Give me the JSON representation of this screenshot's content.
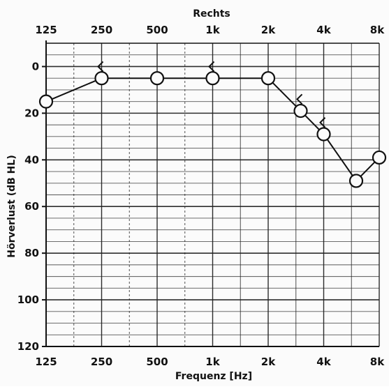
{
  "chart_data": {
    "type": "line",
    "title": "Rechts",
    "xlabel": "Frequenz [Hz]",
    "ylabel": "Hörverlust (dB HL)",
    "x_tick_labels": [
      "125",
      "250",
      "500",
      "1k",
      "2k",
      "4k",
      "8k"
    ],
    "x_tick_values_hz": [
      125,
      250,
      500,
      1000,
      2000,
      4000,
      8000
    ],
    "y_ticks": [
      0,
      20,
      40,
      60,
      80,
      100,
      120
    ],
    "y_tick_labels": [
      "0",
      "20",
      "40",
      "60",
      "80",
      "100",
      "120"
    ],
    "ylim": [
      -10,
      120
    ],
    "y_inverted": true,
    "xlim_hz": [
      125,
      8000
    ],
    "x_scale": "log",
    "grid": true,
    "series": [
      {
        "marker": "circle",
        "connected": true,
        "x": [
          125,
          250,
          500,
          1000,
          2000,
          3000,
          4000,
          6000,
          8000
        ],
        "y": [
          15,
          5,
          5,
          5,
          5,
          19,
          29,
          49,
          39
        ]
      },
      {
        "marker": "arrow",
        "connected": false,
        "x": [
          250,
          1000,
          3000,
          4000
        ],
        "y": [
          0,
          0,
          14,
          24
        ]
      }
    ],
    "colors": {
      "ink": "#111111",
      "grid": "#222222",
      "paper": "#fbfbfb"
    }
  }
}
